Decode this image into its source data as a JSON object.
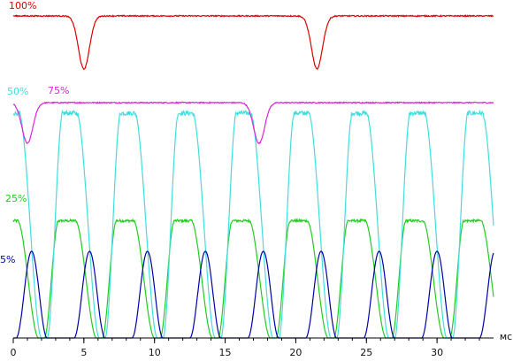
{
  "chart_data": {
    "type": "line",
    "title": "",
    "xlabel": "мс",
    "ylabel": "",
    "xlim": [
      0,
      34
    ],
    "x_ticks": [
      "0",
      "5",
      "10",
      "15",
      "20",
      "25",
      "30"
    ],
    "x_tick_values": [
      0,
      5,
      10,
      15,
      20,
      25,
      30
    ],
    "grid": false,
    "legend": "labels placed next to traces (left side)",
    "series": [
      {
        "name": "100%",
        "color": "#dd0000",
        "baseline_level": 1.0,
        "dips": [
          {
            "center_ms": 5.0,
            "depth": 0.56
          },
          {
            "center_ms": 21.5,
            "depth": 0.56
          }
        ],
        "noise": 0.012
      },
      {
        "name": "75%",
        "color": "#dd22dd",
        "baseline_level": 1.0,
        "dips": [
          {
            "center_ms": 1.0,
            "depth": 0.46
          },
          {
            "center_ms": 17.4,
            "depth": 0.46
          }
        ],
        "noise": 0.012
      },
      {
        "name": "50%",
        "color": "#44dddd",
        "period_ms": 4.1,
        "high_level": 0.97,
        "low_level": 0.0,
        "rise_ms": 1.1,
        "fall_ms": 1.6,
        "high_hold_ms": 1.0,
        "first_rise_start_ms": 2.4
      },
      {
        "name": "25%",
        "color": "#22cc22",
        "period_ms": 4.1,
        "high_level": 0.92,
        "low_level": 0.0,
        "rise_ms": 1.0,
        "fall_ms": 1.5,
        "high_hold_ms": 1.2,
        "first_rise_start_ms": 2.2
      },
      {
        "name": "5%",
        "color": "#0000aa",
        "period_ms": 4.1,
        "peak_level": 1.0,
        "low_level": 0.0,
        "pulse_width_ms": 2.2,
        "first_peak_ms": 1.3
      }
    ]
  }
}
